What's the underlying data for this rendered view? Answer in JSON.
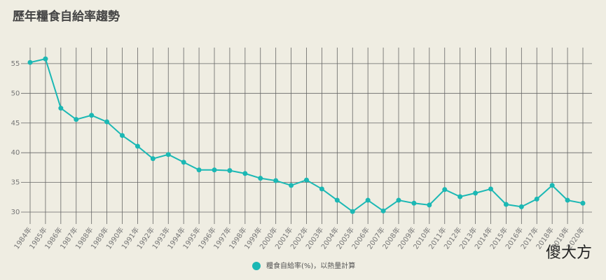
{
  "chart_data": {
    "type": "line",
    "title": "歷年糧食自給率趨勢",
    "categories": [
      "1984年",
      "1985年",
      "1986年",
      "1987年",
      "1988年",
      "1989年",
      "1990年",
      "1991年",
      "1992年",
      "1993年",
      "1994年",
      "1995年",
      "1996年",
      "1997年",
      "1998年",
      "1999年",
      "2000年",
      "2001年",
      "2002年",
      "2003年",
      "2004年",
      "2005年",
      "2006年",
      "2007年",
      "2008年",
      "2009年",
      "2010年",
      "2011年",
      "2012年",
      "2013年",
      "2014年",
      "2015年",
      "2016年",
      "2017年",
      "2018年",
      "2019年",
      "2020年"
    ],
    "series": [
      {
        "name": "糧食自給率(%)，以熱量計算",
        "color": "#1bb8b4",
        "values": [
          55.2,
          55.8,
          47.5,
          45.6,
          46.3,
          45.2,
          42.9,
          41.1,
          39.0,
          39.7,
          38.4,
          37.1,
          37.1,
          37.0,
          36.5,
          35.7,
          35.3,
          34.5,
          35.4,
          33.9,
          32.0,
          30.1,
          32.0,
          30.2,
          32.0,
          31.5,
          31.2,
          33.8,
          32.6,
          33.2,
          33.9,
          31.3,
          30.9,
          32.2,
          34.5,
          32.0,
          31.5
        ]
      }
    ],
    "ylim": [
      28,
      57.7
    ],
    "yticks": [
      30,
      35,
      40,
      45,
      50,
      55
    ],
    "grid": true,
    "watermark": "傻大方"
  }
}
